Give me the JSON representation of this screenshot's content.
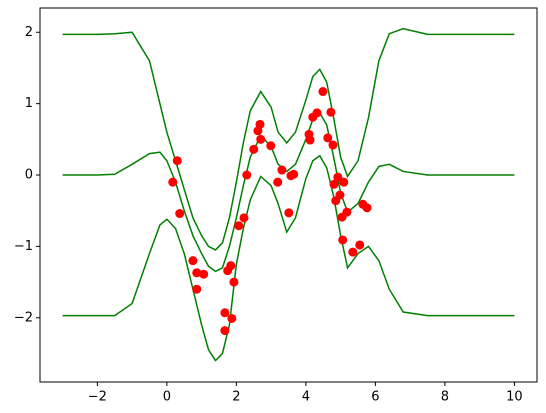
{
  "chart_data": {
    "type": "line",
    "xlim": [
      -3.65,
      10.65
    ],
    "ylim": [
      -2.9,
      2.34
    ],
    "xticks": [
      {
        "value": -2,
        "label": "−2"
      },
      0,
      2,
      4,
      6,
      8,
      10
    ],
    "yticks": [
      {
        "value": -2,
        "label": "−2"
      },
      {
        "value": -1,
        "label": "−1"
      },
      0,
      1,
      2
    ],
    "grid": false,
    "x": [
      -3,
      -2,
      -1.5,
      -1,
      -0.5,
      -0.2,
      0,
      0.25,
      0.5,
      0.75,
      1,
      1.2,
      1.4,
      1.6,
      1.8,
      2,
      2.2,
      2.4,
      2.7,
      3,
      3.2,
      3.45,
      3.7,
      4,
      4.2,
      4.4,
      4.6,
      4.8,
      5,
      5.2,
      5.5,
      5.8,
      6.1,
      6.4,
      6.8,
      7.5,
      10
    ],
    "series": [
      {
        "color": "#008000",
        "values": [
          0,
          0,
          0.01,
          0.15,
          0.3,
          0.32,
          0.2,
          -0.1,
          -0.5,
          -0.85,
          -1.1,
          -1.28,
          -1.35,
          -1.3,
          -1.0,
          -0.6,
          -0.15,
          0.25,
          0.55,
          0.4,
          0.15,
          0.05,
          0.15,
          0.5,
          0.78,
          0.87,
          0.7,
          0.25,
          -0.25,
          -0.52,
          -0.4,
          -0.1,
          0.12,
          0.15,
          0.05,
          0,
          0
        ]
      },
      {
        "color": "#008000",
        "values": [
          1.97,
          1.97,
          1.98,
          2.0,
          1.6,
          1.0,
          0.6,
          0.2,
          -0.2,
          -0.6,
          -0.85,
          -1.0,
          -1.05,
          -0.95,
          -0.6,
          -0.1,
          0.45,
          0.9,
          1.17,
          0.95,
          0.6,
          0.45,
          0.6,
          1.05,
          1.38,
          1.48,
          1.3,
          0.8,
          0.25,
          -0.02,
          0.2,
          0.8,
          1.6,
          1.98,
          2.05,
          1.97,
          1.97
        ]
      },
      {
        "color": "#008000",
        "values": [
          -1.97,
          -1.97,
          -1.97,
          -1.8,
          -1.1,
          -0.7,
          -0.62,
          -0.75,
          -1.1,
          -1.6,
          -2.1,
          -2.45,
          -2.6,
          -2.5,
          -2.1,
          -1.25,
          -0.75,
          -0.35,
          -0.02,
          -0.15,
          -0.4,
          -0.8,
          -0.6,
          -0.05,
          0.2,
          0.27,
          0.1,
          -0.3,
          -0.85,
          -1.3,
          -1.1,
          -1.0,
          -1.2,
          -1.6,
          -1.92,
          -1.97,
          -1.97
        ]
      },
      {
        "type": "scatter",
        "color": "#ff0000",
        "x": [
          0.17,
          0.3,
          0.37,
          0.75,
          0.86,
          0.86,
          1.06,
          1.67,
          1.67,
          1.75,
          1.84,
          1.87,
          1.93,
          2.07,
          2.22,
          2.3,
          2.5,
          2.62,
          2.68,
          2.7,
          2.99,
          3.19,
          3.31,
          3.51,
          3.57,
          3.65,
          4.09,
          4.12,
          4.2,
          4.32,
          4.49,
          4.63,
          4.72,
          4.78,
          4.81,
          4.86,
          4.92,
          4.98,
          5.04,
          5.09,
          5.06,
          5.18,
          5.35,
          5.55,
          5.64,
          5.76
        ],
        "values": [
          -0.1,
          0.2,
          -0.54,
          -1.2,
          -1.37,
          -1.6,
          -1.39,
          -1.93,
          -2.18,
          -1.34,
          -1.27,
          -2.01,
          -1.5,
          -0.71,
          -0.6,
          0,
          0.36,
          0.62,
          0.71,
          0.5,
          0.41,
          -0.1,
          0.07,
          -0.53,
          -0.01,
          0.01,
          0.57,
          0.49,
          0.81,
          0.87,
          1.17,
          0.52,
          0.88,
          0.42,
          -0.13,
          -0.36,
          -0.03,
          -0.28,
          -0.59,
          -0.1,
          -0.91,
          -0.52,
          -1.08,
          -0.98,
          -0.41,
          -0.46
        ]
      }
    ]
  }
}
